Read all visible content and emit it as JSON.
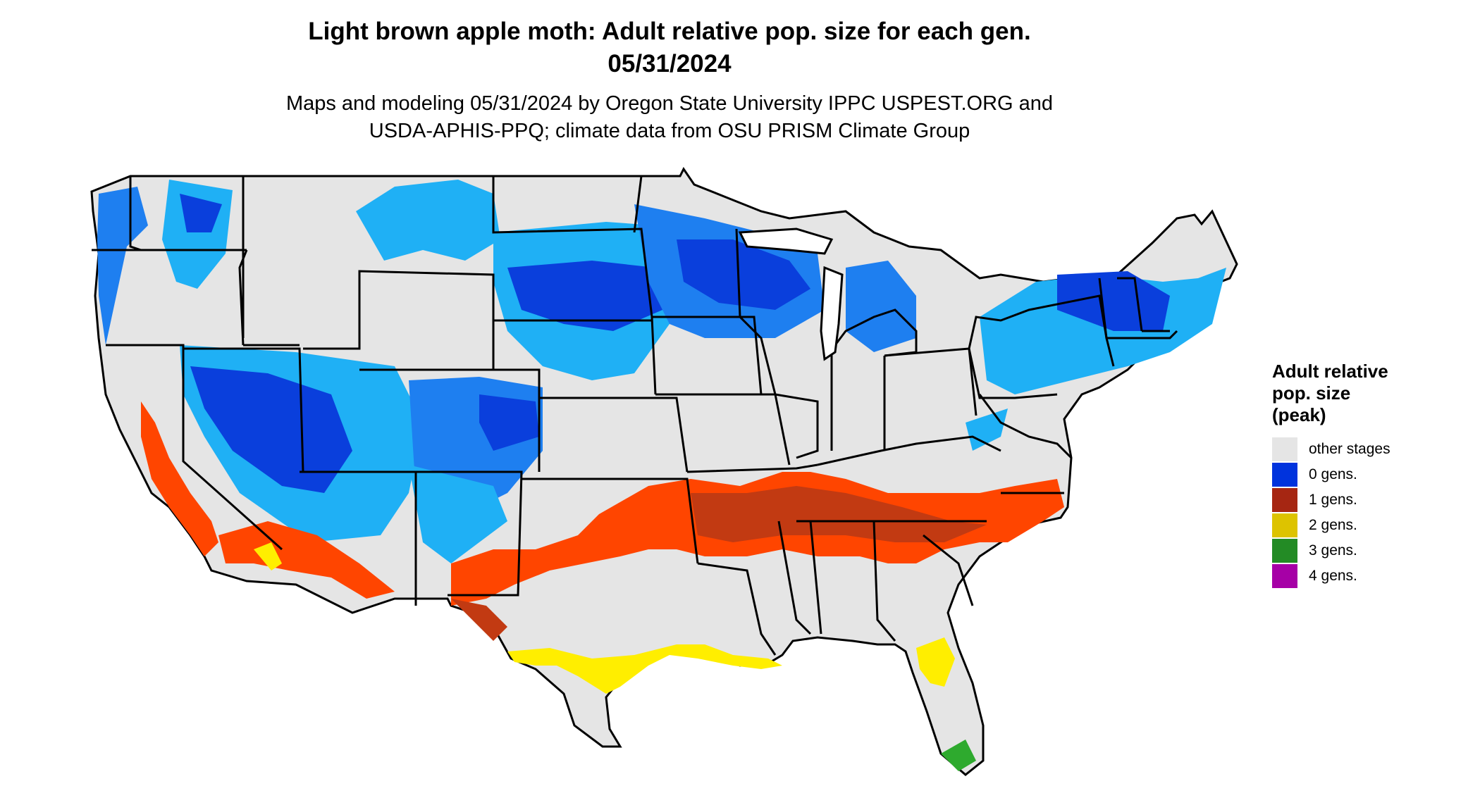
{
  "title": {
    "line1": "Light brown apple moth: Adult relative pop. size for each gen.",
    "line2": "05/31/2024"
  },
  "subtitle": {
    "line1": "Maps and modeling 05/31/2024 by Oregon State University IPPC USPEST.ORG and",
    "line2": "USDA-APHIS-PPQ; climate data from OSU PRISM Climate Group"
  },
  "legend": {
    "title_lines": [
      "Adult relative",
      "pop. size",
      "(peak)"
    ],
    "items": [
      {
        "label": "other stages",
        "color": "#e5e5e5"
      },
      {
        "label": "0 gens.",
        "color": "#0033dd"
      },
      {
        "label": "1 gens.",
        "color": "#a62612"
      },
      {
        "label": "2 gens.",
        "color": "#ddc300"
      },
      {
        "label": "3 gens.",
        "color": "#238b25"
      },
      {
        "label": "4 gens.",
        "color": "#a600a6"
      }
    ]
  },
  "map": {
    "colors": {
      "land": "#e5e5e5",
      "border": "#000000",
      "zero_gens_dark": "#0a3fdc",
      "zero_gens_mid": "#1e7ff0",
      "zero_gens_light": "#1fb0f5",
      "one_gen_bright": "#ff4500",
      "one_gen_dark": "#c23a12",
      "two_gens": "#ffee00",
      "three_gens": "#2eaa2e"
    }
  }
}
